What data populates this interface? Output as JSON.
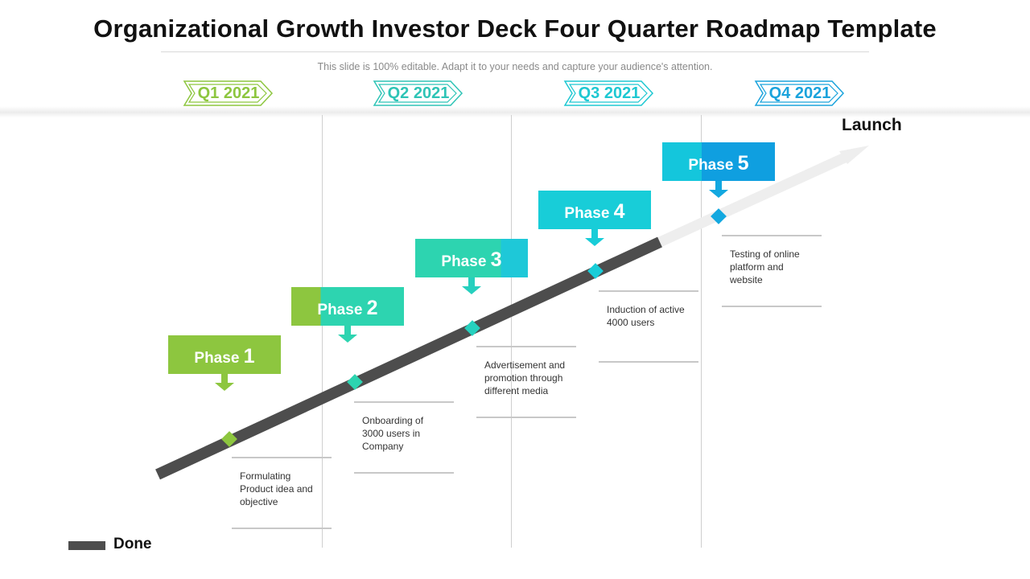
{
  "title": "Organizational Growth Investor Deck Four Quarter Roadmap Template",
  "subtitle": "This slide is 100% editable. Adapt it to your needs and capture your audience's attention.",
  "quarters": [
    {
      "label": "Q1 2021",
      "color": "#8dc63f"
    },
    {
      "label": "Q2 2021",
      "color": "#2ec4b6"
    },
    {
      "label": "Q3 2021",
      "color": "#1ec8d2"
    },
    {
      "label": "Q4 2021",
      "color": "#1aa3dc"
    }
  ],
  "phases": [
    {
      "word": "Phase",
      "num": "1",
      "description": "Formulating Product idea and objective",
      "color": "#8dc63f"
    },
    {
      "word": "Phase",
      "num": "2",
      "description": "Onboarding of 3000 users in Company",
      "color": "#2dd4b0"
    },
    {
      "word": "Phase",
      "num": "3",
      "description": "Advertisement and promotion through different media",
      "color": "#26d0be"
    },
    {
      "word": "Phase",
      "num": "4",
      "description": "Induction of active 4000 users",
      "color": "#18cdd8"
    },
    {
      "word": "Phase",
      "num": "5",
      "description": "Testing of online platform and website",
      "color": "#13a8e0"
    }
  ],
  "launch_label": "Launch",
  "legend": {
    "done_label": "Done",
    "done_color": "#4d4d4d"
  }
}
